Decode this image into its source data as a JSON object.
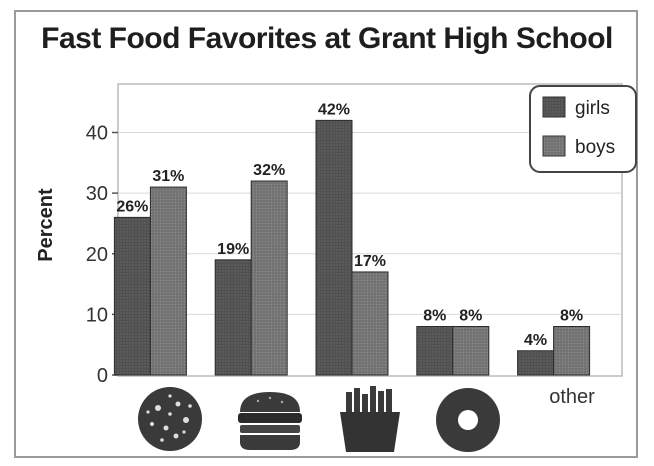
{
  "chart_data": {
    "type": "bar",
    "title": "Fast Food Favorites at Grant High School",
    "ylabel": "Percent",
    "xlabel": "",
    "ylim": [
      0,
      48
    ],
    "yticks": [
      "0",
      "10",
      "20",
      "30",
      "40"
    ],
    "grid": true,
    "legend_position": "top-right",
    "categories": [
      "pizza-icon",
      "burger-icon",
      "fries-icon",
      "donut-icon",
      "other"
    ],
    "category_labels": [
      "",
      "",
      "",
      "",
      "other"
    ],
    "series": [
      {
        "name": "girls",
        "values": [
          26,
          19,
          42,
          8,
          4
        ],
        "labels": [
          "26%",
          "19%",
          "42%",
          "8%",
          "4%"
        ],
        "color": "#555555"
      },
      {
        "name": "boys",
        "values": [
          31,
          32,
          17,
          8,
          8
        ],
        "labels": [
          "31%",
          "32%",
          "17%",
          "8%",
          "8%"
        ],
        "color": "#777777"
      }
    ]
  }
}
